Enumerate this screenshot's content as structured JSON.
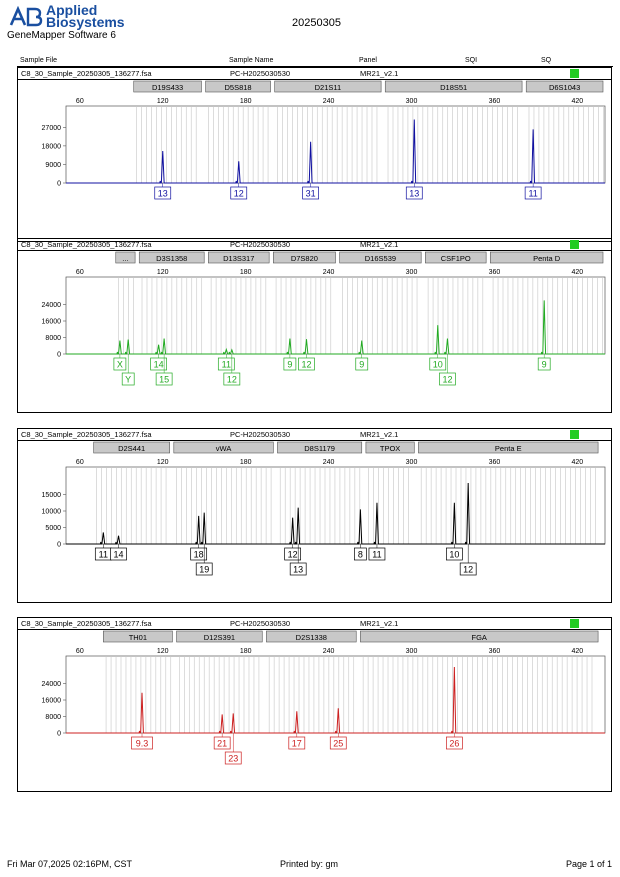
{
  "header": {
    "brand_line1": "Applied",
    "brand_line2": "Biosystems",
    "software": "GeneMapper Software 6",
    "date": "20250305"
  },
  "columns": [
    "Sample File",
    "Sample Name",
    "Panel",
    "SQI",
    "SQ"
  ],
  "sample": {
    "file": "C8_30_Sample_20250305_136277.fsa",
    "name": "PC-H2025030530",
    "panel": "MR21_v2.1"
  },
  "quality_color": "#22cc22",
  "x_ticks": [
    60,
    120,
    180,
    240,
    300,
    360,
    420
  ],
  "chart_data": [
    {
      "type": "line",
      "color": "#1010a0",
      "xlim": [
        50,
        440
      ],
      "ylim": [
        0,
        32000
      ],
      "y_ticks": [
        0,
        9000,
        18000,
        27000
      ],
      "loci": [
        {
          "name": "D19S433",
          "start": 99,
          "end": 148
        },
        {
          "name": "D5S818",
          "start": 151,
          "end": 198
        },
        {
          "name": "D21S11",
          "start": 201,
          "end": 278
        },
        {
          "name": "D18S51",
          "start": 281,
          "end": 380
        },
        {
          "name": "D6S1043",
          "start": 383,
          "end": 458
        }
      ],
      "peaks": [
        {
          "x": 120,
          "h": 15500,
          "label": "13"
        },
        {
          "x": 175,
          "h": 10500,
          "label": "12"
        },
        {
          "x": 227,
          "h": 20000,
          "label": "31"
        },
        {
          "x": 302,
          "h": 30800,
          "label": "13"
        },
        {
          "x": 388,
          "h": 26000,
          "label": "11"
        }
      ]
    },
    {
      "type": "line",
      "color": "#22aa22",
      "xlim": [
        50,
        440
      ],
      "ylim": [
        0,
        32000
      ],
      "y_ticks": [
        0,
        8000,
        16000,
        24000
      ],
      "loci": [
        {
          "name": "...",
          "start": 86,
          "end": 100
        },
        {
          "name": "D3S1358",
          "start": 103,
          "end": 150
        },
        {
          "name": "D13S317",
          "start": 153,
          "end": 197
        },
        {
          "name": "D7S820",
          "start": 200,
          "end": 245
        },
        {
          "name": "D16S539",
          "start": 248,
          "end": 307
        },
        {
          "name": "CSF1PO",
          "start": 310,
          "end": 354
        },
        {
          "name": "Penta D",
          "start": 357,
          "end": 455
        }
      ],
      "peaks": [
        {
          "x": 89,
          "h": 6500,
          "label": "X"
        },
        {
          "x": 95,
          "h": 7000,
          "label": "Y"
        },
        {
          "x": 117,
          "h": 4500,
          "label": "14"
        },
        {
          "x": 121,
          "h": 7500,
          "label": "15"
        },
        {
          "x": 166,
          "h": 2200,
          "label": "11"
        },
        {
          "x": 170,
          "h": 2000,
          "label": "12"
        },
        {
          "x": 212,
          "h": 7500,
          "label": "9"
        },
        {
          "x": 224,
          "h": 7200,
          "label": "12"
        },
        {
          "x": 264,
          "h": 6500,
          "label": "9"
        },
        {
          "x": 319,
          "h": 14000,
          "label": "10"
        },
        {
          "x": 326,
          "h": 7500,
          "label": "12"
        },
        {
          "x": 396,
          "h": 26000,
          "label": "9"
        }
      ]
    },
    {
      "type": "line",
      "color": "#000000",
      "xlim": [
        50,
        440
      ],
      "ylim": [
        0,
        20000
      ],
      "y_ticks": [
        0,
        5000,
        10000,
        15000
      ],
      "loci": [
        {
          "name": "D2S441",
          "start": 70,
          "end": 125
        },
        {
          "name": "vWA",
          "start": 128,
          "end": 200
        },
        {
          "name": "D8S1179",
          "start": 203,
          "end": 264
        },
        {
          "name": "TPOX",
          "start": 267,
          "end": 302
        },
        {
          "name": "Penta E",
          "start": 305,
          "end": 435
        }
      ],
      "peaks": [
        {
          "x": 77,
          "h": 3500,
          "label": "11"
        },
        {
          "x": 88,
          "h": 2500,
          "label": "14"
        },
        {
          "x": 146,
          "h": 8500,
          "label": "18"
        },
        {
          "x": 150,
          "h": 9500,
          "label": "19"
        },
        {
          "x": 214,
          "h": 8000,
          "label": "12"
        },
        {
          "x": 218,
          "h": 11000,
          "label": "13"
        },
        {
          "x": 263,
          "h": 10500,
          "label": "8"
        },
        {
          "x": 275,
          "h": 12500,
          "label": "11"
        },
        {
          "x": 331,
          "h": 12500,
          "label": "10"
        },
        {
          "x": 341,
          "h": 18500,
          "label": "12"
        }
      ]
    },
    {
      "type": "line",
      "color": "#cc2020",
      "xlim": [
        50,
        440
      ],
      "ylim": [
        0,
        32000
      ],
      "y_ticks": [
        0,
        8000,
        16000,
        24000
      ],
      "loci": [
        {
          "name": "TH01",
          "start": 77,
          "end": 127
        },
        {
          "name": "D12S391",
          "start": 130,
          "end": 192
        },
        {
          "name": "D2S1338",
          "start": 195,
          "end": 260
        },
        {
          "name": "FGA",
          "start": 263,
          "end": 435
        }
      ],
      "peaks": [
        {
          "x": 105,
          "h": 19500,
          "label": "9.3"
        },
        {
          "x": 163,
          "h": 9000,
          "label": "21"
        },
        {
          "x": 171,
          "h": 9500,
          "label": "23"
        },
        {
          "x": 217,
          "h": 10500,
          "label": "17"
        },
        {
          "x": 247,
          "h": 12000,
          "label": "25"
        },
        {
          "x": 331,
          "h": 32000,
          "label": "26"
        }
      ]
    }
  ],
  "footer": {
    "timestamp": "Fri Mar 07,2025 02:16PM, CST",
    "printed_by": "Printed by: gm",
    "page": "Page 1 of 1"
  }
}
